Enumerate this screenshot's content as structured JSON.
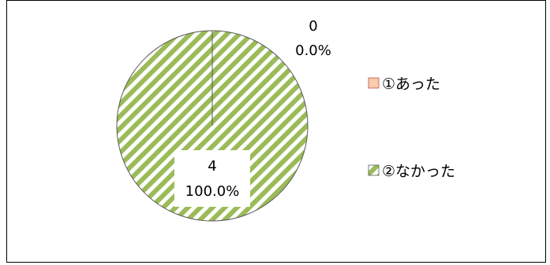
{
  "chart_data": {
    "type": "pie",
    "title": "",
    "categories": [
      "①あった",
      "②なかった"
    ],
    "values": [
      0,
      4
    ],
    "percentages": [
      "0.0%",
      "100.0%"
    ],
    "value_labels": [
      "0",
      "4"
    ],
    "legend_position": "right",
    "colors": {
      "slice_1_fill": "#F8CBAD",
      "slice_1_border": "#C0504D",
      "slice_2_stripe": "#9BBB59",
      "slice_2_background": "#FFFFFF",
      "outline": "#595959"
    }
  }
}
